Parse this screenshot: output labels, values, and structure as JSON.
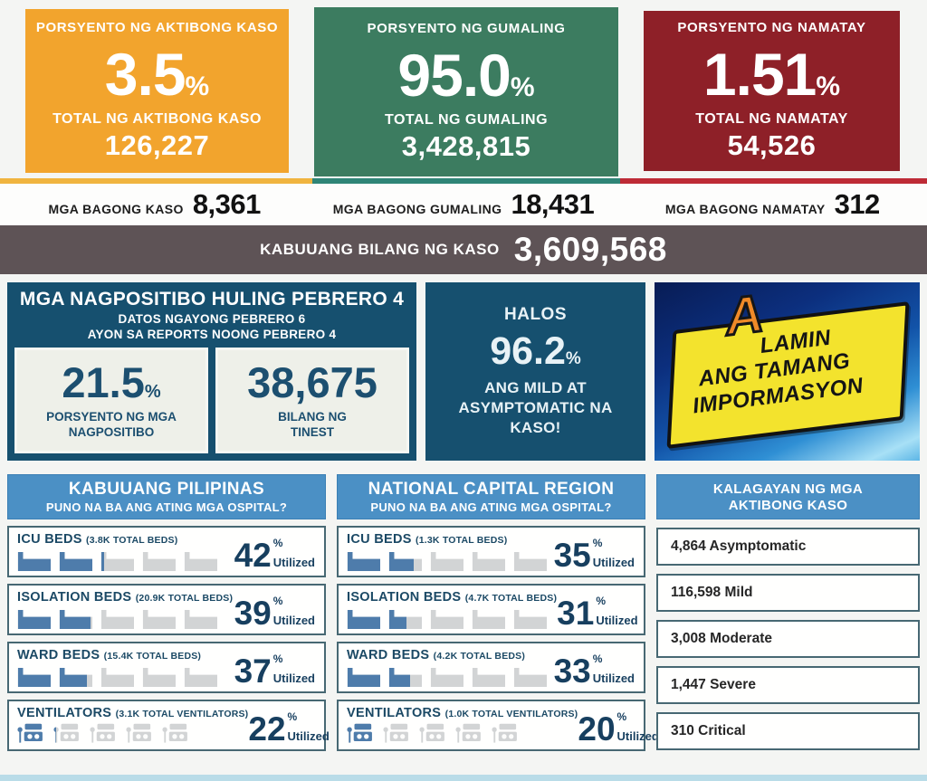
{
  "colors": {
    "active_orange": "#F2A42D",
    "recovered_green": "#3C7C60",
    "deaths_maroon": "#8E2028",
    "edge_orange": "#F0B43F",
    "edge_teal": "#2F8577",
    "edge_red": "#BE2B36",
    "total_bar_brown": "#5E5356",
    "navy_card": "#16506F",
    "header_blue": "#4B90C5",
    "icon_filled_blue": "#4E7CAB",
    "icon_empty_gray": "#D2D4D5",
    "bottom_strip_blue": "#B9DCE8"
  },
  "summary_cards": [
    {
      "title": "PORSYENTO NG AKTIBONG KASO",
      "percent": "3.5",
      "total_label": "TOTAL NG AKTIBONG KASO",
      "total": "126,227"
    },
    {
      "title": "PORSYENTO NG GUMALING",
      "percent": "95.0",
      "total_label": "TOTAL NG GUMALING",
      "total": "3,428,815"
    },
    {
      "title": "PORSYENTO NG NAMATAY",
      "percent": "1.51",
      "total_label": "TOTAL NG NAMATAY",
      "total": "54,526"
    }
  ],
  "new_row": [
    {
      "label": "MGA BAGONG KASO",
      "value": "8,361"
    },
    {
      "label": "MGA BAGONG GUMALING",
      "value": "18,431"
    },
    {
      "label": "MGA BAGONG NAMATAY",
      "value": "312"
    }
  ],
  "total_bar": {
    "label": "KABUUANG BILANG NG KASO",
    "value": "3,609,568"
  },
  "positivity": {
    "title": "MGA NAGPOSITIBO HULING PEBRERO 4",
    "subtitle1": "DATOS NGAYONG PEBRERO 6",
    "subtitle2": "AYON SA REPORTS NOONG PEBRERO 4",
    "rate": "21.5",
    "rate_label_1": "PORSYENTO NG MGA",
    "rate_label_2": "NAGPOSITIBO",
    "tests": "38,675",
    "tests_label_1": "BILANG NG",
    "tests_label_2": "TINEST"
  },
  "mild_card": {
    "line1": "HALOS",
    "percent": "96.2",
    "line2": "ANG MILD AT ASYMPTOMATIC NA KASO!"
  },
  "info_banner": {
    "lead": "A",
    "line1": "LAMIN",
    "line2": "ANG TAMANG",
    "line3": "IMPORMASYON"
  },
  "labels": {
    "percent_sign": "%",
    "utilized": "Utilized"
  },
  "hospital_columns": [
    {
      "title": "KABUUANG PILIPINAS",
      "subtitle": "PUNO NA BA ANG ATING MGA OSPITAL?",
      "rows": [
        {
          "label": "ICU BEDS",
          "detail": "(3.8K TOTAL BEDS)",
          "percent": 42,
          "icon": "bed"
        },
        {
          "label": "ISOLATION BEDS",
          "detail": "(20.9K TOTAL BEDS)",
          "percent": 39,
          "icon": "bed"
        },
        {
          "label": "WARD BEDS",
          "detail": "(15.4K TOTAL BEDS)",
          "percent": 37,
          "icon": "bed"
        },
        {
          "label": "VENTILATORS",
          "detail": "(3.1K TOTAL VENTILATORS)",
          "percent": 22,
          "icon": "ventilator"
        }
      ]
    },
    {
      "title": "NATIONAL CAPITAL REGION",
      "subtitle": "PUNO NA BA ANG ATING MGA OSPITAL?",
      "rows": [
        {
          "label": "ICU BEDS",
          "detail": "(1.3K TOTAL BEDS)",
          "percent": 35,
          "icon": "bed"
        },
        {
          "label": "ISOLATION BEDS",
          "detail": "(4.7K TOTAL BEDS)",
          "percent": 31,
          "icon": "bed"
        },
        {
          "label": "WARD BEDS",
          "detail": "(4.2K TOTAL BEDS)",
          "percent": 33,
          "icon": "bed"
        },
        {
          "label": "VENTILATORS",
          "detail": "(1.0K TOTAL VENTILATORS)",
          "percent": 20,
          "icon": "ventilator"
        }
      ]
    }
  ],
  "active_case_status": {
    "title_line1": "KALAGAYAN NG MGA",
    "title_line2": "AKTIBONG KASO",
    "rows": [
      {
        "text": "4,864 Asymptomatic"
      },
      {
        "text": "116,598 Mild"
      },
      {
        "text": "3,008 Moderate"
      },
      {
        "text": "1,447 Severe"
      },
      {
        "text": "310 Critical"
      }
    ]
  },
  "chart_data": [
    {
      "type": "table",
      "title": "COVID-19 case summary (Philippines)",
      "rows": [
        [
          "Porsyento ng Aktibong Kaso",
          3.5
        ],
        [
          "Total ng Aktibong Kaso",
          126227
        ],
        [
          "Porsyento ng Gumaling",
          95.0
        ],
        [
          "Total ng Gumaling",
          3428815
        ],
        [
          "Porsyento ng Namatay",
          1.51
        ],
        [
          "Total ng Namatay",
          54526
        ],
        [
          "Mga Bagong Kaso",
          8361
        ],
        [
          "Mga Bagong Gumaling",
          18431
        ],
        [
          "Mga Bagong Namatay",
          312
        ],
        [
          "Kabuuang Bilang ng Kaso",
          3609568
        ],
        [
          "Porsyento ng mga Nagpositibo",
          21.5
        ],
        [
          "Bilang ng Tinest",
          38675
        ],
        [
          "Mild at Asymptomatic na Kaso %",
          96.2
        ]
      ]
    },
    {
      "type": "bar",
      "title": "Kabuuang Pilipinas — % Utilized",
      "categories": [
        "ICU BEDS (3.8K)",
        "ISOLATION BEDS (20.9K)",
        "WARD BEDS (15.4K)",
        "VENTILATORS (3.1K)"
      ],
      "values": [
        42,
        39,
        37,
        22
      ],
      "ylabel": "% Utilized",
      "ylim": [
        0,
        100
      ]
    },
    {
      "type": "bar",
      "title": "National Capital Region — % Utilized",
      "categories": [
        "ICU BEDS (1.3K)",
        "ISOLATION BEDS (4.7K)",
        "WARD BEDS (4.2K)",
        "VENTILATORS (1.0K)"
      ],
      "values": [
        35,
        31,
        33,
        20
      ],
      "ylabel": "% Utilized",
      "ylim": [
        0,
        100
      ]
    },
    {
      "type": "bar",
      "title": "Kalagayan ng mga Aktibong Kaso",
      "categories": [
        "Asymptomatic",
        "Mild",
        "Moderate",
        "Severe",
        "Critical"
      ],
      "values": [
        4864,
        116598,
        3008,
        1447,
        310
      ]
    }
  ]
}
